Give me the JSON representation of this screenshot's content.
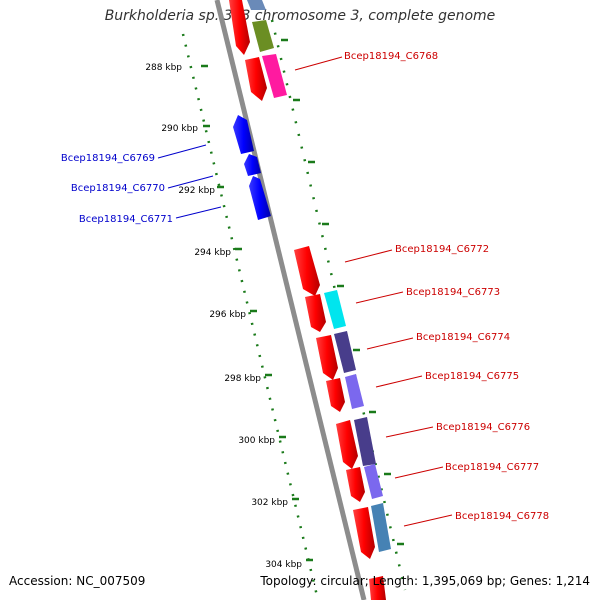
{
  "title": "Burkholderia sp. 383 chromosome 3, complete genome",
  "footer": {
    "accession": "Accession: NC_007509",
    "topology": "Topology: circular; Length: 1,395,069 bp; Genes: 1,214"
  },
  "colors": {
    "tick": "#1a7a1a",
    "backbone": "#8c8c8c",
    "plus_label": "#cc0000",
    "minus_label": "#0000cc"
  },
  "scale_ticks": [
    {
      "label": "288 kbp"
    },
    {
      "label": "290 kbp"
    },
    {
      "label": "292 kbp"
    },
    {
      "label": "294 kbp"
    },
    {
      "label": "296 kbp"
    },
    {
      "label": "298 kbp"
    },
    {
      "label": "300 kbp"
    },
    {
      "label": "302 kbp"
    },
    {
      "label": "304 kbp"
    }
  ],
  "genes_plus": [
    {
      "label": "Bcep18194_C6768"
    },
    {
      "label": "Bcep18194_C6772"
    },
    {
      "label": "Bcep18194_C6773"
    },
    {
      "label": "Bcep18194_C6774"
    },
    {
      "label": "Bcep18194_C6775"
    },
    {
      "label": "Bcep18194_C6776"
    },
    {
      "label": "Bcep18194_C6777"
    },
    {
      "label": "Bcep18194_C6778"
    }
  ],
  "genes_minus": [
    {
      "label": "Bcep18194_C6769"
    },
    {
      "label": "Bcep18194_C6770"
    },
    {
      "label": "Bcep18194_C6771"
    }
  ]
}
